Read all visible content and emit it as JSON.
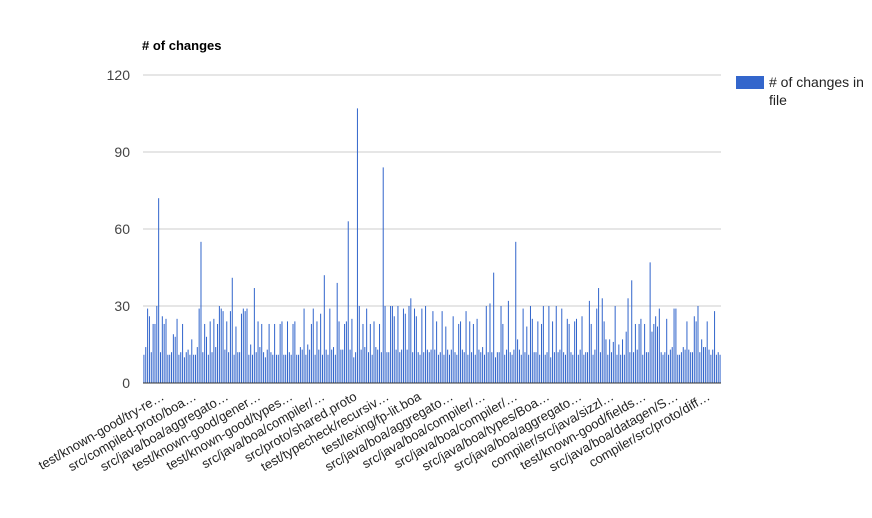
{
  "chart_data": {
    "type": "bar",
    "title": "# of changes",
    "xlabel": "",
    "ylabel": "",
    "ylim": [
      0,
      120
    ],
    "yticks": [
      0,
      30,
      60,
      90,
      120
    ],
    "grid": true,
    "legend_position": "right",
    "bar_color": "#3366cc",
    "series": [
      {
        "name": "# of changes in file",
        "values": [
          11,
          14,
          29,
          26,
          12,
          23,
          23,
          30,
          72,
          12,
          26,
          23,
          25,
          11,
          11,
          12,
          19,
          18,
          25,
          11,
          12,
          23,
          10,
          12,
          13,
          11,
          17,
          11,
          11,
          14,
          29,
          55,
          12,
          23,
          18,
          11,
          24,
          12,
          25,
          14,
          23,
          30,
          29,
          28,
          13,
          24,
          12,
          28,
          41,
          11,
          22,
          12,
          12,
          27,
          29,
          28,
          29,
          11,
          15,
          11,
          37,
          12,
          24,
          14,
          23,
          12,
          10,
          13,
          23,
          12,
          11,
          23,
          11,
          11,
          23,
          24,
          11,
          11,
          24,
          12,
          11,
          23,
          24,
          11,
          11,
          14,
          13,
          29,
          11,
          15,
          13,
          23,
          29,
          11,
          24,
          13,
          27,
          11,
          42,
          13,
          11,
          29,
          13,
          14,
          11,
          39,
          24,
          13,
          13,
          23,
          24,
          63,
          13,
          25,
          10,
          12,
          107,
          30,
          13,
          23,
          14,
          29,
          12,
          23,
          11,
          24,
          14,
          13,
          23,
          12,
          84,
          30,
          12,
          12,
          30,
          30,
          26,
          13,
          30,
          12,
          13,
          29,
          27,
          13,
          30,
          33,
          12,
          29,
          26,
          12,
          11,
          29,
          12,
          30,
          13,
          12,
          13,
          28,
          13,
          24,
          11,
          12,
          28,
          11,
          22,
          13,
          11,
          13,
          26,
          12,
          11,
          23,
          24,
          13,
          12,
          28,
          11,
          24,
          12,
          23,
          11,
          25,
          13,
          12,
          14,
          11,
          30,
          12,
          31,
          12,
          43,
          10,
          12,
          12,
          30,
          23,
          11,
          13,
          32,
          12,
          11,
          13,
          55,
          17,
          13,
          11,
          29,
          12,
          22,
          11,
          30,
          25,
          12,
          12,
          24,
          11,
          23,
          30,
          11,
          12,
          30,
          10,
          24,
          12,
          30,
          12,
          13,
          29,
          12,
          11,
          25,
          23,
          12,
          11,
          24,
          25,
          11,
          13,
          26,
          11,
          12,
          12,
          32,
          23,
          11,
          13,
          29,
          37,
          12,
          33,
          24,
          17,
          11,
          17,
          12,
          16,
          30,
          11,
          15,
          11,
          17,
          11,
          20,
          33,
          12,
          40,
          12,
          23,
          13,
          23,
          25,
          11,
          23,
          12,
          12,
          47,
          20,
          23,
          26,
          22,
          29,
          12,
          11,
          12,
          25,
          11,
          13,
          14,
          29,
          29,
          11,
          11,
          12,
          14,
          13,
          24,
          13,
          12,
          12,
          26,
          24,
          30,
          12,
          17,
          14,
          14,
          24,
          13,
          11,
          13,
          28,
          11,
          12,
          11
        ]
      }
    ],
    "x_tick_labels": [
      "test/known-good/try-re…",
      "src/compiled-proto/boa…",
      "src/java/boa/aggregato…",
      "test/known-good/gener…",
      "test/known-good/types…",
      "src/java/boa/compiler/…",
      "src/proto/shared.proto",
      "test/typecheck/recursiv…",
      "test/lexing/fp-lit.boa",
      "src/java/boa/aggregato…",
      "src/java/boa/compiler/…",
      "src/java/boa/compiler/…",
      "src/java/boa/types/Boa…",
      "src/java/boa/aggregato…",
      "compiler/src/java/sizzl…",
      "test/known-good/fields…",
      "src/java/boa/datagen/S…",
      "compiler/src/proto/diff…"
    ]
  }
}
